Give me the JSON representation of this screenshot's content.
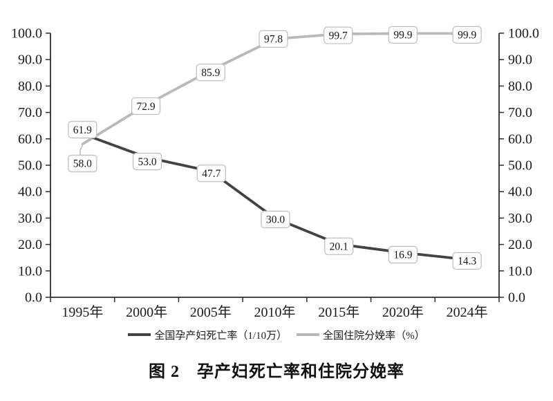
{
  "chart_data": {
    "type": "line",
    "title": "图 2　孕产妇死亡率和住院分娩率",
    "categories": [
      "1995年",
      "2000年",
      "2005年",
      "2010年",
      "2015年",
      "2020年",
      "2024年"
    ],
    "series": [
      {
        "name": "全国孕产妇死亡率（1/10万）",
        "values": [
          61.9,
          53.0,
          47.7,
          30.0,
          20.1,
          16.9,
          14.3
        ],
        "color": "#434343",
        "label_offsets": [
          [
            0,
            -6
          ],
          [
            1,
            6
          ],
          [
            1,
            3
          ],
          [
            1,
            2
          ],
          [
            0,
            3
          ],
          [
            0,
            3
          ],
          [
            0,
            2
          ]
        ],
        "leader_lines": [
          false,
          false,
          false,
          false,
          false,
          false,
          false
        ]
      },
      {
        "name": "全国住院分娩率（%）",
        "values": [
          58.0,
          72.9,
          85.9,
          97.8,
          99.7,
          99.9,
          99.9
        ],
        "color": "#b9b9b9",
        "label_offsets": [
          [
            0,
            28
          ],
          [
            -1,
            2
          ],
          [
            0,
            3
          ],
          [
            -2,
            0
          ],
          [
            -1,
            2
          ],
          [
            0,
            2
          ],
          [
            0,
            2
          ]
        ],
        "leader_lines": [
          true,
          false,
          false,
          false,
          false,
          false,
          false
        ]
      }
    ],
    "y_axis_left": {
      "min": 0,
      "max": 100,
      "step": 10,
      "decimals": 1
    },
    "y_axis_right": {
      "min": 0,
      "max": 100,
      "step": 10,
      "decimals": 1
    },
    "grid": false,
    "legend_position": "bottom",
    "data_labels": "boxed, one decimal, on every point",
    "axis_color": "#2b2b2b",
    "text_color": "#1b1b1b",
    "label_box": {
      "fill": "#ffffff",
      "border": "#c0c0c0",
      "text_color": "#161616"
    }
  }
}
